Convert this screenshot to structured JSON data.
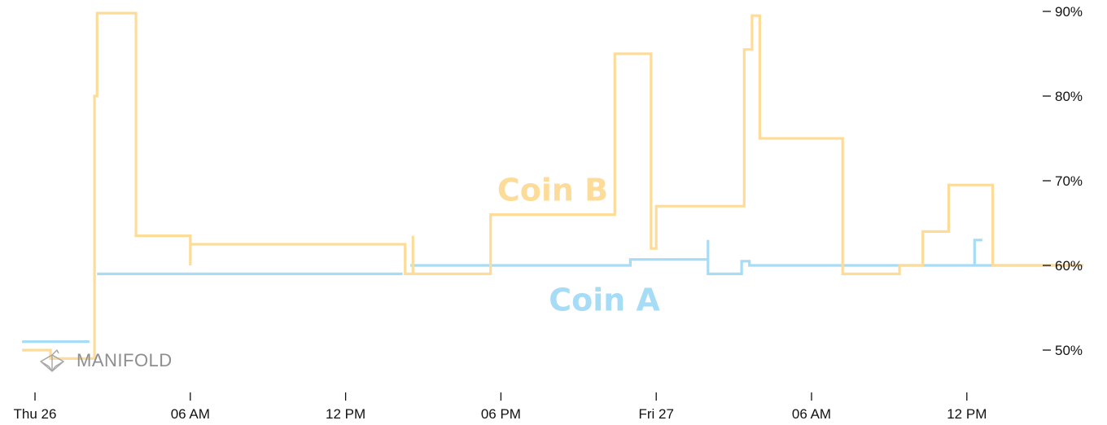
{
  "chart_data": {
    "type": "line",
    "step": true,
    "x_unit": "hours since Thu 26 00:00",
    "x_range": [
      -1,
      40.5
    ],
    "ylim": [
      45,
      90
    ],
    "y_ticks": [
      50,
      60,
      70,
      80,
      90
    ],
    "y_tick_labels": [
      "50%",
      "60%",
      "70%",
      "80%",
      "90%"
    ],
    "x_ticks": [
      0,
      6,
      12,
      18,
      24,
      30,
      36
    ],
    "x_tick_labels": [
      "Thu 26",
      "06 AM",
      "12 PM",
      "06 PM",
      "Fri 27",
      "06 AM",
      "12 PM"
    ],
    "grid": false,
    "series": [
      {
        "name": "Coin A",
        "color": "#a6dcf5",
        "label_pos": [
          22,
          56
        ],
        "segments": [
          [
            [
              -0.5,
              51
            ],
            [
              2.1,
              51
            ]
          ],
          [
            [
              2.4,
              59
            ],
            [
              14.2,
              59
            ]
          ],
          [
            [
              14.5,
              60
            ],
            [
              23.0,
              60
            ],
            [
              23.0,
              60.7
            ],
            [
              26.0,
              60.7
            ],
            [
              26.0,
              63
            ],
            [
              26.0,
              59
            ],
            [
              27.3,
              59
            ],
            [
              27.3,
              60.5
            ],
            [
              27.6,
              60.5
            ],
            [
              27.6,
              60
            ],
            [
              40.5,
              60
            ],
            [
              36.3,
              60
            ],
            [
              36.3,
              63
            ],
            [
              36.6,
              63
            ]
          ]
        ]
      },
      {
        "name": "Coin B",
        "color": "#fddc9a",
        "label_pos": [
          20,
          69
        ],
        "segments": [
          [
            [
              -0.5,
              50
            ],
            [
              0.6,
              50
            ],
            [
              0.6,
              49
            ],
            [
              2.3,
              49
            ],
            [
              2.3,
              80
            ],
            [
              2.4,
              80
            ],
            [
              2.4,
              89.8
            ],
            [
              3.9,
              89.8
            ],
            [
              3.9,
              63.5
            ],
            [
              6.0,
              63.5
            ],
            [
              6.0,
              60
            ],
            [
              6.0,
              62.5
            ],
            [
              14.3,
              62.5
            ],
            [
              14.3,
              59
            ],
            [
              14.6,
              59
            ],
            [
              14.6,
              63.5
            ],
            [
              14.6,
              59
            ],
            [
              17.6,
              59
            ],
            [
              17.6,
              66
            ],
            [
              22.4,
              66
            ],
            [
              22.4,
              85
            ],
            [
              23.8,
              85
            ],
            [
              23.8,
              72.5
            ],
            [
              23.8,
              62
            ],
            [
              24.0,
              62
            ],
            [
              24.0,
              67
            ],
            [
              27.4,
              67
            ],
            [
              27.4,
              85.5
            ],
            [
              27.7,
              85.5
            ],
            [
              27.7,
              89.5
            ],
            [
              28.0,
              89.5
            ],
            [
              28.0,
              75
            ],
            [
              31.2,
              75
            ],
            [
              31.2,
              59
            ],
            [
              33.4,
              59
            ],
            [
              33.4,
              60
            ],
            [
              34.3,
              60
            ],
            [
              34.3,
              64
            ],
            [
              35.3,
              64
            ],
            [
              35.3,
              69.5
            ],
            [
              37.0,
              69.5
            ],
            [
              37.0,
              60
            ],
            [
              40.5,
              60
            ]
          ]
        ]
      }
    ]
  },
  "logo": {
    "text": "MANIFOLD"
  }
}
